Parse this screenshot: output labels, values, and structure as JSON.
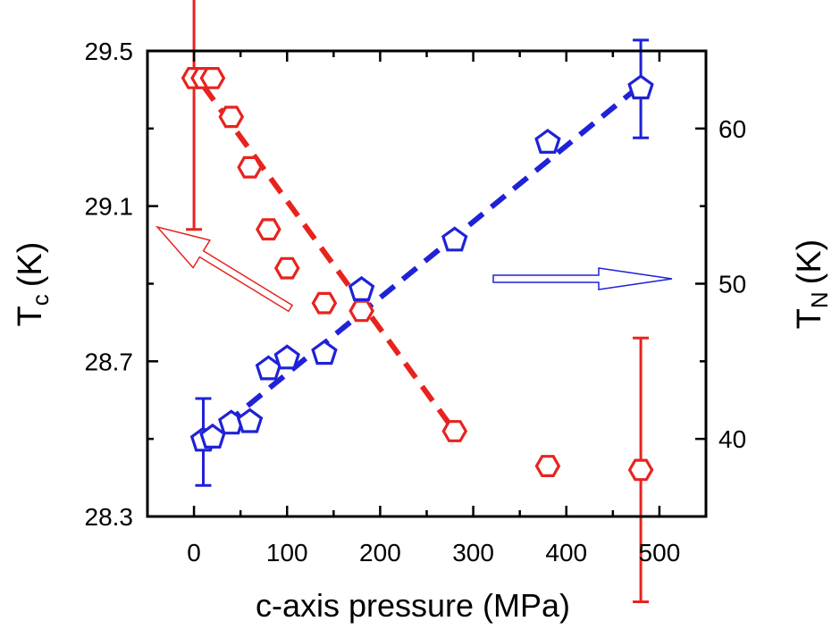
{
  "chart_data": {
    "type": "scatter",
    "xlabel": "c-axis pressure (MPa)",
    "ylabel_left": {
      "main": "T",
      "sub": "c",
      "unit": "(K)"
    },
    "ylabel_right": {
      "main": "T",
      "sub": "N",
      "unit": "(K)"
    },
    "xlim": [
      -50,
      550
    ],
    "ylim_left": [
      28.3,
      29.5
    ],
    "ylim_right": [
      35,
      65
    ],
    "x_ticks": [
      "0",
      "100",
      "200",
      "300",
      "400",
      "500"
    ],
    "y_left_ticks": [
      "28.3",
      "28.7",
      "29.1",
      "29.5"
    ],
    "y_right_ticks": [
      "40",
      "50",
      "60"
    ],
    "grid": false,
    "series": [
      {
        "axis": "left",
        "color": "#e8231e",
        "marker": "hexagon",
        "x": [
          0,
          10,
          20,
          40,
          60,
          80,
          100,
          140,
          180,
          280,
          380,
          480
        ],
        "y": [
          29.43,
          29.43,
          29.43,
          29.33,
          29.2,
          29.04,
          28.94,
          28.85,
          28.83,
          28.52,
          28.43,
          28.42
        ],
        "error_bars": [
          {
            "x": 0,
            "low": 29.04,
            "high": 29.83
          },
          {
            "x": 480,
            "low": 28.08,
            "high": 28.76
          }
        ]
      },
      {
        "axis": "right",
        "color": "#1f22d6",
        "marker": "pentagon",
        "x": [
          10,
          20,
          40,
          60,
          80,
          100,
          140,
          180,
          280,
          380,
          480
        ],
        "y": [
          39.9,
          40.1,
          41.0,
          41.1,
          44.5,
          45.2,
          45.5,
          49.6,
          52.8,
          59.1,
          62.6
        ],
        "error_bars": [
          {
            "x": 10,
            "low": 37.0,
            "high": 42.6
          },
          {
            "x": 480,
            "low": 59.4,
            "high": 65.7
          }
        ]
      }
    ],
    "fit_lines": [
      {
        "axis": "left",
        "color": "#e8231e",
        "x": [
          10,
          280
        ],
        "y": [
          29.41,
          28.52
        ]
      },
      {
        "axis": "right",
        "color": "#1f22d6",
        "x": [
          10,
          480
        ],
        "y": [
          39.8,
          62.8
        ]
      }
    ],
    "arrows": [
      {
        "direction": "left",
        "color": "#e8231e"
      },
      {
        "direction": "right",
        "color": "#1f22d6"
      }
    ]
  }
}
